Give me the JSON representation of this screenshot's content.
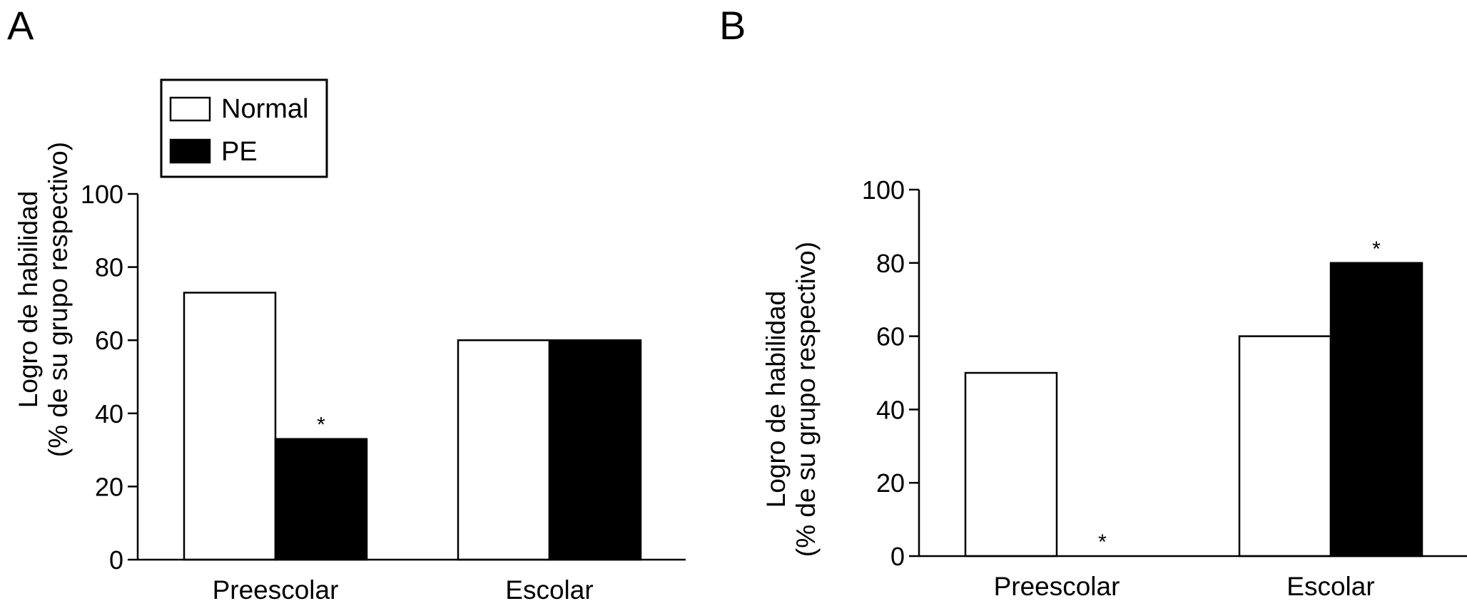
{
  "legend": {
    "entries": [
      {
        "label": "Normal",
        "color": "#ffffff"
      },
      {
        "label": "PE",
        "color": "#000000"
      }
    ]
  },
  "chart_data": [
    {
      "type": "bar",
      "panel_label": "A",
      "categories": [
        "Preescolar",
        "Escolar"
      ],
      "series": [
        {
          "name": "Normal",
          "values": [
            73,
            60
          ],
          "color": "#ffffff"
        },
        {
          "name": "PE",
          "values": [
            33,
            60
          ],
          "color": "#000000"
        }
      ],
      "significance": [
        {
          "category": "Preescolar",
          "series": "PE",
          "marker": "*"
        }
      ],
      "ylabel_line1": "Logro de habilidad",
      "ylabel_line2": "(% de su grupo respectivo)",
      "ylim": [
        0,
        100
      ],
      "yticks": [
        0,
        20,
        40,
        60,
        80,
        100
      ],
      "legend_position": "top-left"
    },
    {
      "type": "bar",
      "panel_label": "B",
      "categories": [
        "Preescolar",
        "Escolar"
      ],
      "series": [
        {
          "name": "Normal",
          "values": [
            50,
            60
          ],
          "color": "#ffffff"
        },
        {
          "name": "PE",
          "values": [
            0,
            80
          ],
          "color": "#000000"
        }
      ],
      "significance": [
        {
          "category": "Preescolar",
          "series": "PE",
          "marker": "*"
        },
        {
          "category": "Escolar",
          "series": "PE",
          "marker": "*"
        }
      ],
      "ylabel_line1": "Logro de habilidad",
      "ylabel_line2": "(% de su grupo respectivo)",
      "ylim": [
        0,
        100
      ],
      "yticks": [
        0,
        20,
        40,
        60,
        80,
        100
      ]
    }
  ]
}
